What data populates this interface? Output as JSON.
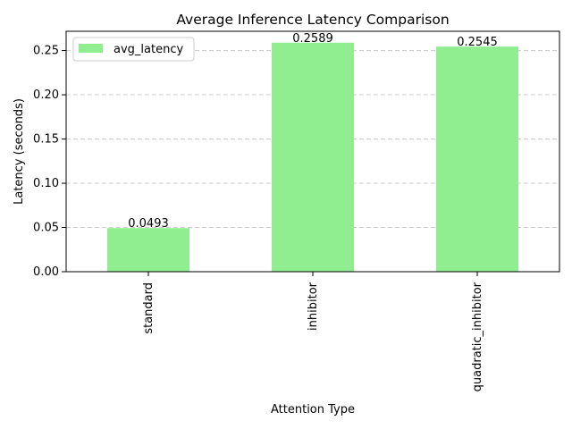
{
  "chart_data": {
    "type": "bar",
    "title": "Average Inference Latency Comparison",
    "xlabel": "Attention Type",
    "ylabel": "Latency (seconds)",
    "categories": [
      "standard",
      "inhibitor",
      "quadratic_inhibitor"
    ],
    "series": [
      {
        "name": "avg_latency",
        "values": [
          0.0493,
          0.2589,
          0.2545
        ],
        "color": "#90ee90"
      }
    ],
    "data_labels": [
      "0.0493",
      "0.2589",
      "0.2545"
    ],
    "y_ticks": [
      0.0,
      0.05,
      0.1,
      0.15,
      0.2,
      0.25
    ],
    "y_tick_labels": [
      "0.00",
      "0.05",
      "0.10",
      "0.15",
      "0.20",
      "0.25"
    ],
    "ylim": [
      0,
      0.2718
    ],
    "grid": "y-axis, dashed",
    "legend_position": "top-left",
    "x_tick_rotation": 90
  }
}
